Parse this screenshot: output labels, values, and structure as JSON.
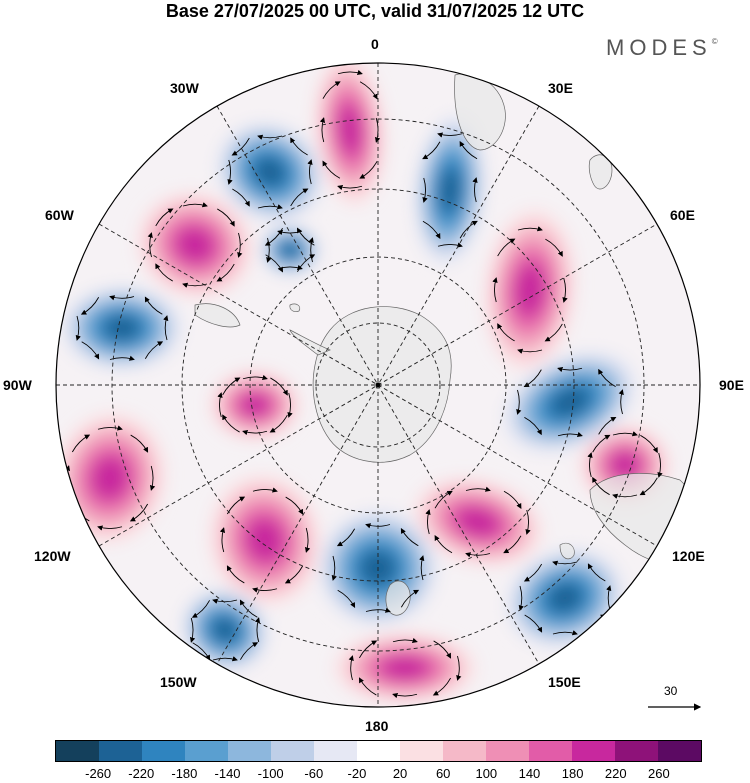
{
  "title": "Base 27/07/2025 00 UTC, valid 31/07/2025 12 UTC",
  "brand": {
    "name": "MODES",
    "mark": "©"
  },
  "map": {
    "projection": "south polar stereographic",
    "labels": {
      "lon_0": "0",
      "lon_30e": "30E",
      "lon_60e": "60E",
      "lon_90e": "90E",
      "lon_120e": "120E",
      "lon_150e": "150E",
      "lon_180": "180",
      "lon_150w": "150W",
      "lon_120w": "120W",
      "lon_90w": "90W",
      "lon_60w": "60W",
      "lon_30w": "30W"
    },
    "vector_scale": "30"
  },
  "colorbar": {
    "ticks": [
      "-260",
      "-220",
      "-180",
      "-140",
      "-100",
      "-60",
      "-20",
      "20",
      "60",
      "100",
      "140",
      "180",
      "220",
      "260"
    ],
    "colors": [
      "#14405c",
      "#1d6295",
      "#2f84bf",
      "#5a9fd0",
      "#8db7dd",
      "#bfcfe8",
      "#e6e8f4",
      "#ffffff",
      "#fbe0e3",
      "#f5b9c8",
      "#ef8fb5",
      "#e25ca8",
      "#c8289e",
      "#8e1279",
      "#5c0a63"
    ]
  }
}
